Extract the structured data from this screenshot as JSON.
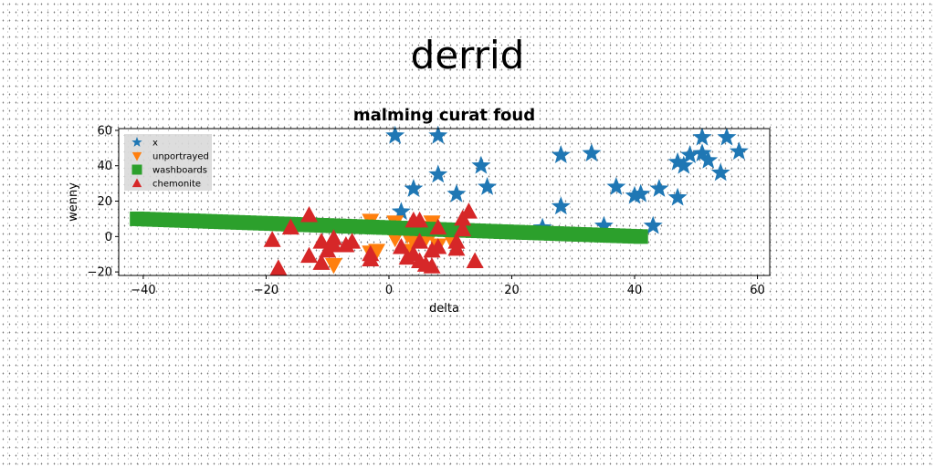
{
  "page": {
    "title": "derrid"
  },
  "chart_data": {
    "type": "scatter",
    "title": "malming curat foud",
    "xlabel": "delta",
    "ylabel": "wenny",
    "xlim": [
      -44,
      62
    ],
    "ylim": [
      -22,
      61
    ],
    "xticks": [
      -40,
      -20,
      0,
      20,
      40,
      60
    ],
    "yticks": [
      -20,
      0,
      20,
      40,
      60
    ],
    "xtick_labels": [
      "−40",
      "−20",
      "0",
      "20",
      "40",
      "60"
    ],
    "ytick_labels": [
      "−20",
      "0",
      "20",
      "40",
      "60"
    ],
    "grid": false,
    "legend_position": "top-left",
    "series": [
      {
        "name": "x",
        "marker": "star",
        "color": "#1f77b4",
        "points": [
          [
            1,
            57
          ],
          [
            8,
            57
          ],
          [
            8,
            35
          ],
          [
            4,
            27
          ],
          [
            2,
            14
          ],
          [
            11,
            24
          ],
          [
            15,
            40
          ],
          [
            16,
            28
          ],
          [
            25,
            5
          ],
          [
            28,
            46
          ],
          [
            28,
            17
          ],
          [
            33,
            47
          ],
          [
            35,
            6
          ],
          [
            37,
            28
          ],
          [
            40,
            23
          ],
          [
            41,
            24
          ],
          [
            44,
            27
          ],
          [
            43,
            6
          ],
          [
            47,
            22
          ],
          [
            47,
            42
          ],
          [
            48,
            40
          ],
          [
            49,
            46
          ],
          [
            51,
            47
          ],
          [
            51,
            56
          ],
          [
            52,
            43
          ],
          [
            54,
            36
          ],
          [
            55,
            56
          ],
          [
            57,
            48
          ]
        ]
      },
      {
        "name": "unportrayed",
        "marker": "triangle-down",
        "color": "#ff7f0e",
        "points": [
          [
            -3,
            9
          ],
          [
            -3,
            -9
          ],
          [
            1,
            8
          ],
          [
            1,
            -1
          ],
          [
            3,
            1
          ],
          [
            3,
            -8
          ],
          [
            4,
            -3
          ],
          [
            5,
            5
          ],
          [
            6,
            -1
          ],
          [
            7,
            8
          ],
          [
            7,
            2
          ],
          [
            -9,
            -16
          ],
          [
            -2,
            -8
          ],
          [
            8,
            -5
          ],
          [
            10,
            -1
          ]
        ]
      },
      {
        "name": "washboards",
        "marker": "square",
        "color": "#2ca02c",
        "line": [
          [
            -41,
            10
          ],
          [
            41,
            0
          ]
        ]
      },
      {
        "name": "chemonite",
        "marker": "triangle-up",
        "color": "#d62728",
        "points": [
          [
            -19,
            -2
          ],
          [
            -18,
            -18
          ],
          [
            -16,
            5
          ],
          [
            -13,
            -11
          ],
          [
            -13,
            12
          ],
          [
            -11,
            -3
          ],
          [
            -11,
            -15
          ],
          [
            -10,
            -8
          ],
          [
            -9,
            -1
          ],
          [
            -9,
            -5
          ],
          [
            -7,
            -5
          ],
          [
            -6,
            -3
          ],
          [
            -3,
            -10
          ],
          [
            -3,
            -13
          ],
          [
            2,
            -6
          ],
          [
            3,
            -12
          ],
          [
            4,
            -10
          ],
          [
            4,
            9
          ],
          [
            5,
            9
          ],
          [
            5,
            -3
          ],
          [
            5,
            -14
          ],
          [
            6,
            -16
          ],
          [
            7,
            -8
          ],
          [
            7,
            -17
          ],
          [
            8,
            -6
          ],
          [
            8,
            5
          ],
          [
            11,
            -3
          ],
          [
            11,
            -7
          ],
          [
            12,
            4
          ],
          [
            12,
            10
          ],
          [
            13,
            14
          ],
          [
            14,
            -14
          ]
        ]
      }
    ]
  }
}
